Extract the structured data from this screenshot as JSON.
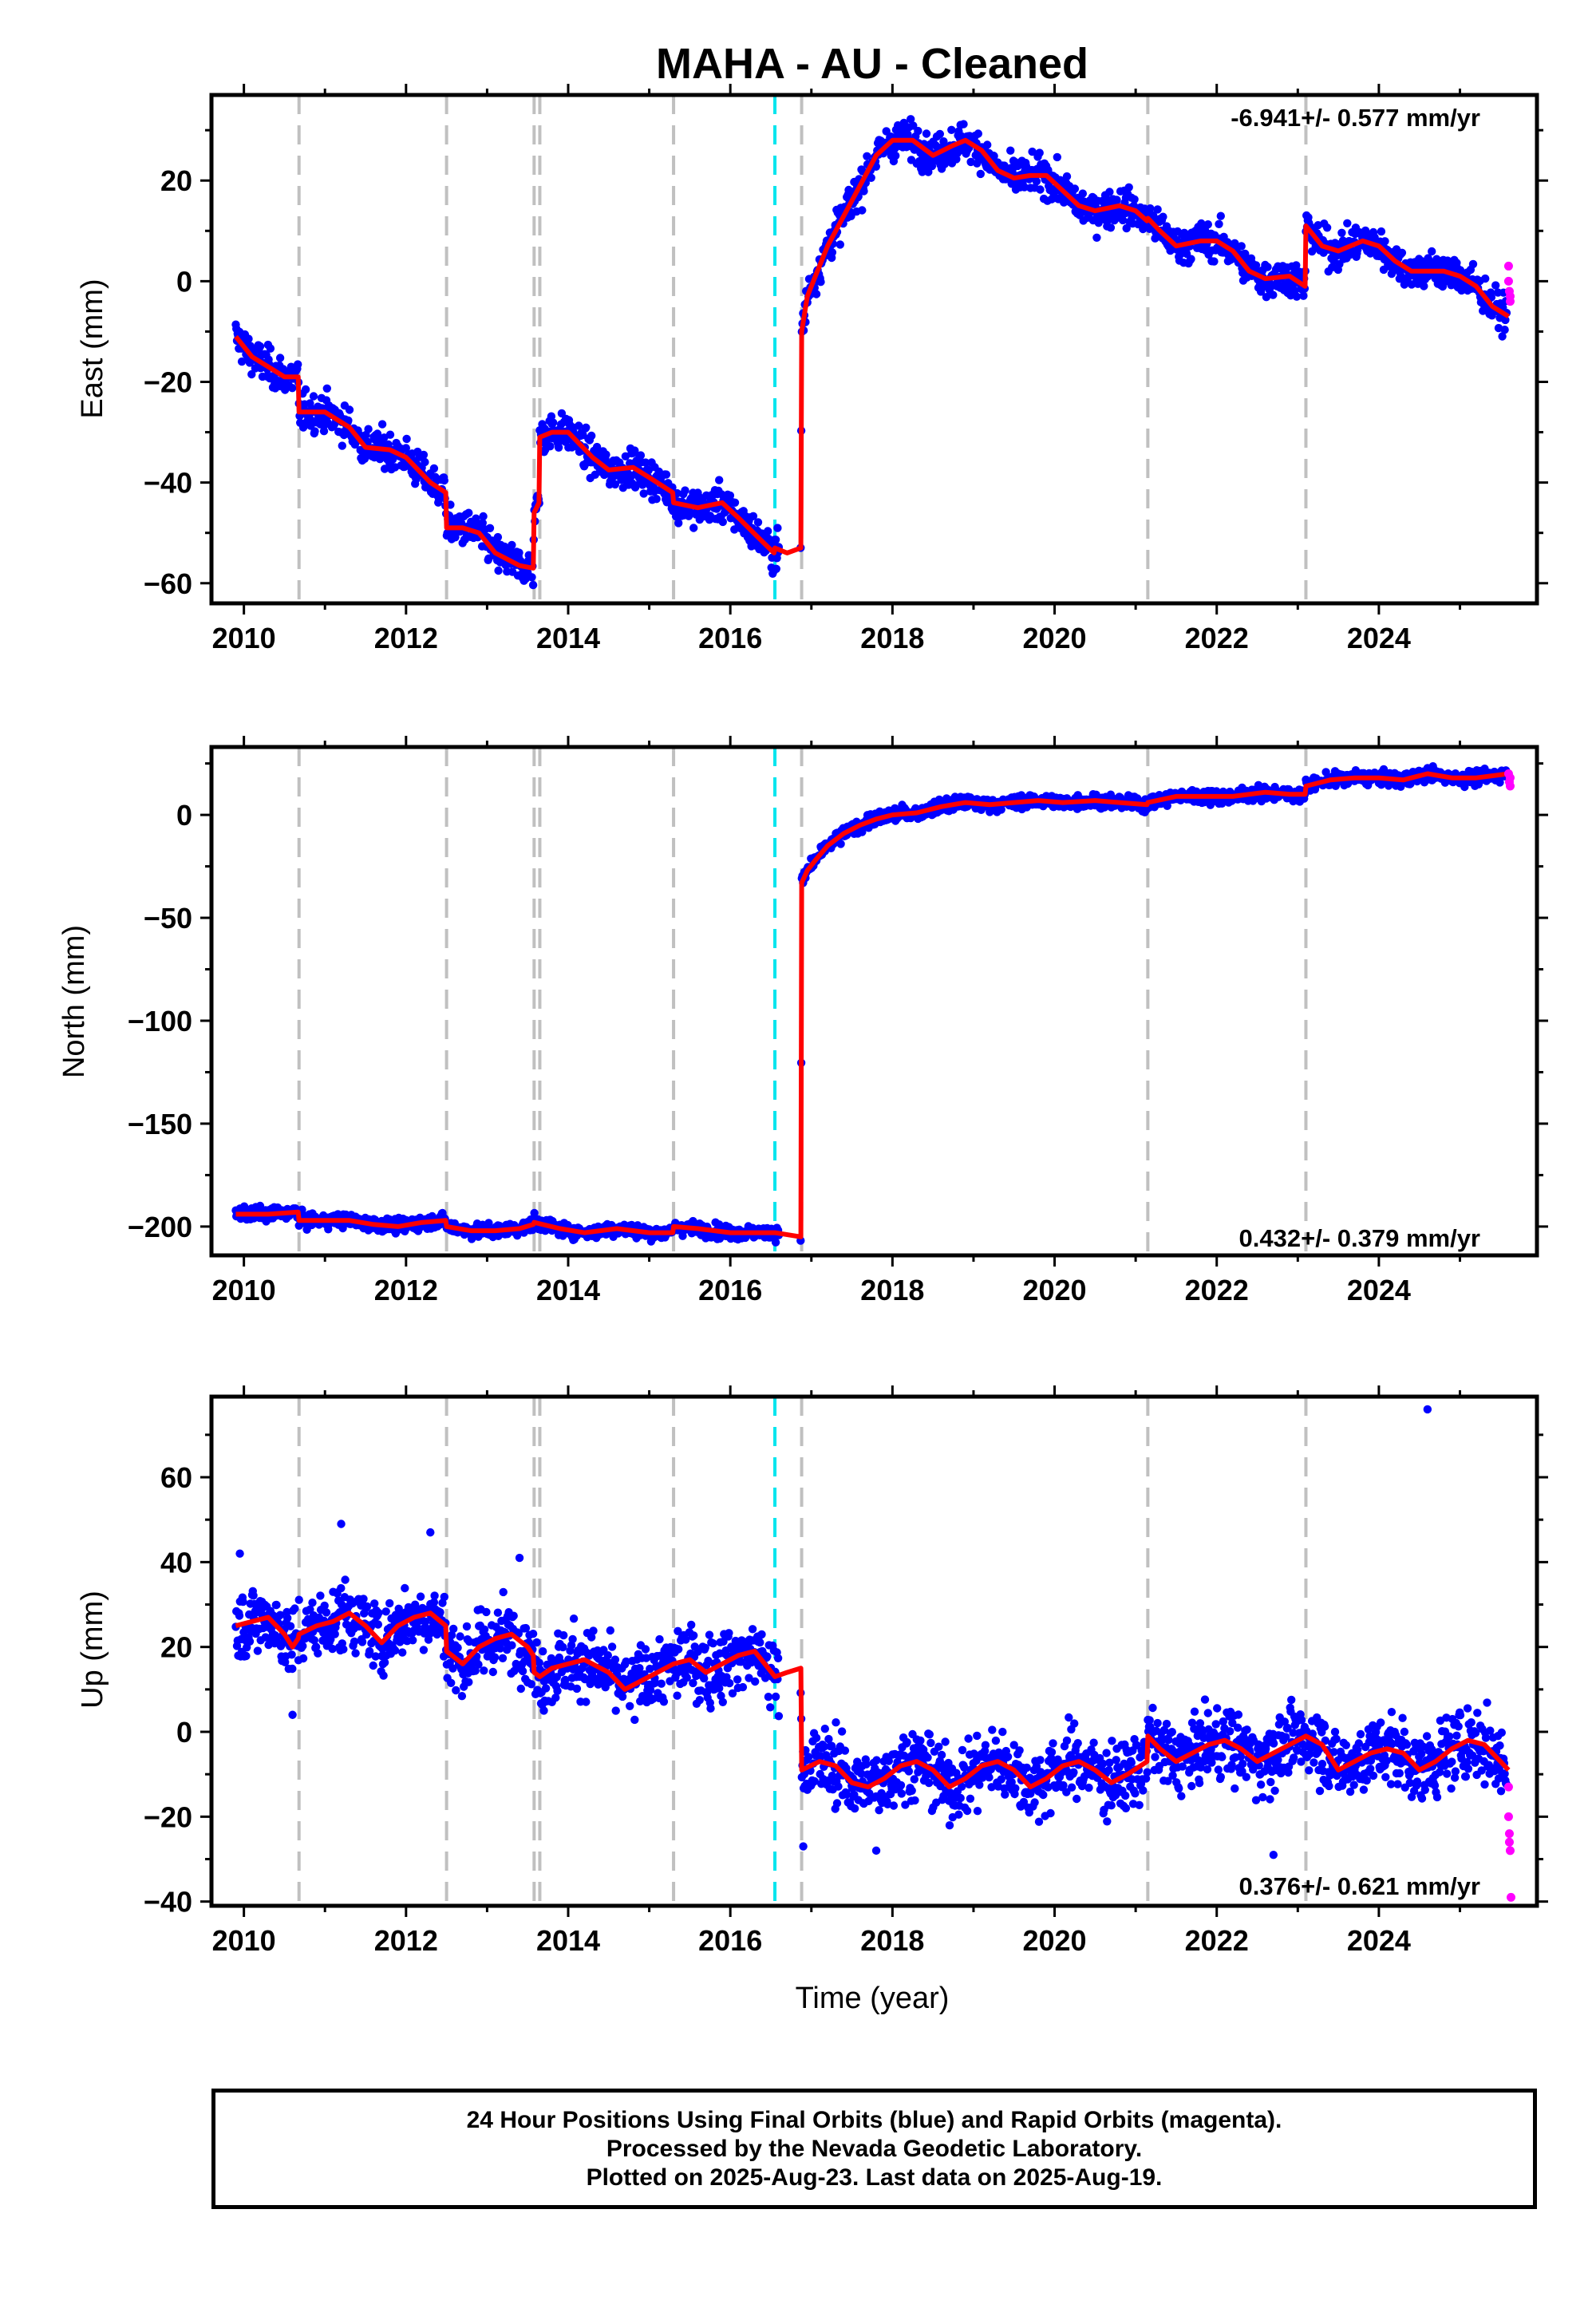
{
  "title": "MAHA  - AU - Cleaned",
  "xlabel": "Time (year)",
  "footer": {
    "line1": "24 Hour Positions Using Final Orbits (blue) and Rapid Orbits (magenta).",
    "line2": "Processed by the Nevada Geodetic Laboratory.",
    "line3": "Plotted on 2025-Aug-23. Last data on 2025-Aug-19."
  },
  "colors": {
    "final_orbits": "#0000ff",
    "rapid_orbits": "#ff00ff",
    "model": "#ff0000",
    "equipment_change": "#c0c0c0",
    "earthquake": "#00e5ee"
  },
  "chart_data": [
    {
      "type": "scatter",
      "component": "East",
      "ylabel": "East (mm)",
      "xlim": [
        2009.6,
        2025.95
      ],
      "ylim": [
        -64,
        37
      ],
      "yticks": [
        -60,
        -40,
        -20,
        0,
        20
      ],
      "xticks": [
        2010,
        2012,
        2014,
        2016,
        2018,
        2020,
        2022,
        2024
      ],
      "rate": "-6.941+/- 0.577 mm/yr",
      "rate_position": "top-right",
      "grid": false,
      "steps_gray": [
        2010.68,
        2012.5,
        2013.58,
        2013.65,
        2015.3,
        2016.88,
        2021.15,
        2023.1
      ],
      "steps_cyan": [
        2016.55
      ],
      "model": [
        [
          2009.9,
          -11
        ],
        [
          2010.1,
          -15
        ],
        [
          2010.3,
          -17
        ],
        [
          2010.5,
          -19
        ],
        [
          2010.67,
          -19
        ],
        [
          2010.68,
          -26
        ],
        [
          2011.0,
          -26
        ],
        [
          2011.3,
          -29
        ],
        [
          2011.5,
          -33
        ],
        [
          2011.8,
          -33.5
        ],
        [
          2012.0,
          -35
        ],
        [
          2012.3,
          -40
        ],
        [
          2012.49,
          -42
        ],
        [
          2012.5,
          -49
        ],
        [
          2012.7,
          -49
        ],
        [
          2012.9,
          -50
        ],
        [
          2013.1,
          -54
        ],
        [
          2013.4,
          -56.5
        ],
        [
          2013.57,
          -57
        ],
        [
          2013.58,
          -46
        ],
        [
          2013.64,
          -44
        ],
        [
          2013.65,
          -31
        ],
        [
          2013.8,
          -30
        ],
        [
          2014.0,
          -30
        ],
        [
          2014.3,
          -35
        ],
        [
          2014.5,
          -37.5
        ],
        [
          2014.8,
          -37
        ],
        [
          2015.0,
          -39
        ],
        [
          2015.29,
          -42
        ],
        [
          2015.3,
          -44
        ],
        [
          2015.6,
          -45
        ],
        [
          2015.9,
          -44
        ],
        [
          2016.1,
          -47
        ],
        [
          2016.35,
          -51
        ],
        [
          2016.54,
          -54
        ],
        [
          2016.55,
          -53
        ],
        [
          2016.7,
          -54
        ],
        [
          2016.87,
          -53
        ],
        [
          2016.88,
          -10
        ],
        [
          2016.95,
          -3
        ],
        [
          2017.05,
          1
        ],
        [
          2017.2,
          7
        ],
        [
          2017.4,
          13
        ],
        [
          2017.6,
          19
        ],
        [
          2017.8,
          25
        ],
        [
          2018.0,
          28
        ],
        [
          2018.25,
          28
        ],
        [
          2018.5,
          25
        ],
        [
          2018.75,
          27
        ],
        [
          2018.9,
          28
        ],
        [
          2019.1,
          26
        ],
        [
          2019.3,
          22
        ],
        [
          2019.5,
          20.5
        ],
        [
          2019.7,
          21
        ],
        [
          2019.9,
          21
        ],
        [
          2020.1,
          18
        ],
        [
          2020.3,
          15
        ],
        [
          2020.5,
          14
        ],
        [
          2020.8,
          15
        ],
        [
          2021.0,
          14
        ],
        [
          2021.14,
          12
        ],
        [
          2021.15,
          12.5
        ],
        [
          2021.3,
          10
        ],
        [
          2021.5,
          7
        ],
        [
          2021.8,
          8
        ],
        [
          2022.0,
          8
        ],
        [
          2022.2,
          6
        ],
        [
          2022.4,
          2
        ],
        [
          2022.6,
          0.5
        ],
        [
          2022.9,
          1
        ],
        [
          2023.09,
          -1
        ],
        [
          2023.1,
          11
        ],
        [
          2023.3,
          7
        ],
        [
          2023.5,
          6
        ],
        [
          2023.8,
          8
        ],
        [
          2024.0,
          7
        ],
        [
          2024.2,
          4
        ],
        [
          2024.4,
          2
        ],
        [
          2024.6,
          2
        ],
        [
          2024.8,
          2
        ],
        [
          2025.0,
          1
        ],
        [
          2025.2,
          -1
        ],
        [
          2025.4,
          -5
        ],
        [
          2025.6,
          -7
        ]
      ],
      "rapid_orbits": [
        [
          2025.6,
          3
        ],
        [
          2025.6,
          0
        ],
        [
          2025.61,
          -2
        ],
        [
          2025.62,
          -4
        ],
        [
          2025.62,
          -3
        ]
      ]
    },
    {
      "type": "scatter",
      "component": "North",
      "ylabel": "North (mm)",
      "xlim": [
        2009.6,
        2025.95
      ],
      "ylim": [
        -214,
        33
      ],
      "yticks": [
        -200,
        -150,
        -100,
        -50,
        0
      ],
      "xticks": [
        2010,
        2012,
        2014,
        2016,
        2018,
        2020,
        2022,
        2024
      ],
      "rate": "0.432+/- 0.379 mm/yr",
      "rate_position": "bottom-right",
      "grid": false,
      "steps_gray": [
        2010.68,
        2012.5,
        2013.58,
        2013.65,
        2015.3,
        2016.88,
        2021.15,
        2023.1
      ],
      "steps_cyan": [
        2016.55
      ],
      "model": [
        [
          2009.9,
          -194
        ],
        [
          2010.3,
          -194
        ],
        [
          2010.67,
          -193
        ],
        [
          2010.68,
          -197
        ],
        [
          2011.0,
          -197
        ],
        [
          2011.3,
          -197
        ],
        [
          2011.6,
          -199
        ],
        [
          2011.9,
          -200
        ],
        [
          2012.2,
          -198
        ],
        [
          2012.49,
          -197
        ],
        [
          2012.5,
          -200
        ],
        [
          2012.8,
          -202
        ],
        [
          2013.1,
          -202
        ],
        [
          2013.4,
          -201
        ],
        [
          2013.57,
          -199
        ],
        [
          2013.58,
          -198
        ],
        [
          2013.9,
          -201
        ],
        [
          2014.2,
          -203
        ],
        [
          2014.6,
          -201
        ],
        [
          2015.0,
          -203
        ],
        [
          2015.29,
          -203
        ],
        [
          2015.3,
          -200
        ],
        [
          2015.6,
          -201
        ],
        [
          2016.0,
          -203
        ],
        [
          2016.3,
          -203
        ],
        [
          2016.55,
          -203
        ],
        [
          2016.87,
          -205
        ],
        [
          2016.88,
          -33
        ],
        [
          2016.95,
          -27
        ],
        [
          2017.05,
          -22
        ],
        [
          2017.2,
          -15
        ],
        [
          2017.4,
          -9
        ],
        [
          2017.6,
          -5
        ],
        [
          2017.8,
          -2
        ],
        [
          2018.0,
          0
        ],
        [
          2018.3,
          1
        ],
        [
          2018.6,
          4
        ],
        [
          2018.9,
          6
        ],
        [
          2019.2,
          5
        ],
        [
          2019.5,
          6
        ],
        [
          2019.8,
          7
        ],
        [
          2020.1,
          6
        ],
        [
          2020.5,
          7
        ],
        [
          2020.8,
          6
        ],
        [
          2021.14,
          5
        ],
        [
          2021.15,
          6
        ],
        [
          2021.5,
          9
        ],
        [
          2021.8,
          9
        ],
        [
          2022.2,
          9
        ],
        [
          2022.6,
          11
        ],
        [
          2022.9,
          10
        ],
        [
          2023.09,
          10
        ],
        [
          2023.1,
          14
        ],
        [
          2023.4,
          17
        ],
        [
          2023.7,
          18
        ],
        [
          2024.0,
          18
        ],
        [
          2024.3,
          17
        ],
        [
          2024.6,
          20
        ],
        [
          2024.9,
          18
        ],
        [
          2025.2,
          18
        ],
        [
          2025.6,
          20
        ]
      ],
      "rapid_orbits": [
        [
          2025.6,
          20
        ],
        [
          2025.61,
          16
        ],
        [
          2025.62,
          14
        ],
        [
          2025.62,
          18
        ]
      ]
    },
    {
      "type": "scatter",
      "component": "Up",
      "ylabel": "Up (mm)",
      "xlim": [
        2009.6,
        2025.95
      ],
      "ylim": [
        -41,
        79
      ],
      "yticks": [
        -40,
        -20,
        0,
        20,
        40,
        60
      ],
      "xticks": [
        2010,
        2012,
        2014,
        2016,
        2018,
        2020,
        2022,
        2024
      ],
      "rate": "0.376+/- 0.621 mm/yr",
      "rate_position": "bottom-right",
      "grid": false,
      "steps_gray": [
        2010.68,
        2012.5,
        2013.58,
        2013.65,
        2015.3,
        2016.88,
        2021.15,
        2023.1
      ],
      "steps_cyan": [
        2016.55
      ],
      "model": [
        [
          2009.9,
          25
        ],
        [
          2010.1,
          26
        ],
        [
          2010.3,
          27
        ],
        [
          2010.5,
          23
        ],
        [
          2010.6,
          20
        ],
        [
          2010.67,
          22
        ],
        [
          2010.68,
          23
        ],
        [
          2010.9,
          25
        ],
        [
          2011.1,
          26
        ],
        [
          2011.3,
          28
        ],
        [
          2011.5,
          25
        ],
        [
          2011.7,
          21
        ],
        [
          2011.9,
          25
        ],
        [
          2012.1,
          27
        ],
        [
          2012.3,
          28
        ],
        [
          2012.49,
          25
        ],
        [
          2012.5,
          19
        ],
        [
          2012.7,
          16
        ],
        [
          2012.9,
          20
        ],
        [
          2013.1,
          22
        ],
        [
          2013.3,
          23
        ],
        [
          2013.5,
          20
        ],
        [
          2013.57,
          18
        ],
        [
          2013.58,
          14
        ],
        [
          2013.65,
          13
        ],
        [
          2013.8,
          15
        ],
        [
          2014.0,
          16
        ],
        [
          2014.2,
          17
        ],
        [
          2014.5,
          14
        ],
        [
          2014.7,
          10
        ],
        [
          2014.9,
          12
        ],
        [
          2015.1,
          14
        ],
        [
          2015.3,
          16
        ],
        [
          2015.5,
          17
        ],
        [
          2015.7,
          14
        ],
        [
          2015.9,
          16
        ],
        [
          2016.1,
          18
        ],
        [
          2016.3,
          19
        ],
        [
          2016.55,
          13
        ],
        [
          2016.7,
          14
        ],
        [
          2016.87,
          15
        ],
        [
          2016.88,
          -9
        ],
        [
          2017.1,
          -7
        ],
        [
          2017.3,
          -8
        ],
        [
          2017.5,
          -12
        ],
        [
          2017.7,
          -13
        ],
        [
          2017.9,
          -11
        ],
        [
          2018.1,
          -8
        ],
        [
          2018.3,
          -7
        ],
        [
          2018.5,
          -9
        ],
        [
          2018.7,
          -13
        ],
        [
          2018.9,
          -11
        ],
        [
          2019.1,
          -8
        ],
        [
          2019.3,
          -7
        ],
        [
          2019.5,
          -9
        ],
        [
          2019.7,
          -13
        ],
        [
          2019.9,
          -11
        ],
        [
          2020.1,
          -8
        ],
        [
          2020.3,
          -7
        ],
        [
          2020.5,
          -9
        ],
        [
          2020.7,
          -12
        ],
        [
          2020.9,
          -10
        ],
        [
          2021.14,
          -7
        ],
        [
          2021.15,
          -1
        ],
        [
          2021.3,
          -4
        ],
        [
          2021.5,
          -7
        ],
        [
          2021.7,
          -5
        ],
        [
          2021.9,
          -3
        ],
        [
          2022.1,
          -2
        ],
        [
          2022.3,
          -4
        ],
        [
          2022.5,
          -7
        ],
        [
          2022.7,
          -5
        ],
        [
          2022.9,
          -3
        ],
        [
          2023.1,
          -1
        ],
        [
          2023.3,
          -3
        ],
        [
          2023.5,
          -9
        ],
        [
          2023.7,
          -7
        ],
        [
          2023.9,
          -5
        ],
        [
          2024.1,
          -4
        ],
        [
          2024.3,
          -5
        ],
        [
          2024.5,
          -9
        ],
        [
          2024.7,
          -7
        ],
        [
          2024.9,
          -4
        ],
        [
          2025.1,
          -2
        ],
        [
          2025.3,
          -3
        ],
        [
          2025.5,
          -7
        ],
        [
          2025.6,
          -9
        ]
      ],
      "outliers": [
        [
          2024.6,
          76
        ],
        [
          2012.3,
          47
        ],
        [
          2011.2,
          49
        ],
        [
          2013.4,
          41
        ],
        [
          2009.95,
          42
        ],
        [
          2010.6,
          4
        ],
        [
          2013.7,
          5
        ],
        [
          2017.8,
          -28
        ],
        [
          2022.7,
          -29
        ],
        [
          2016.9,
          -27
        ]
      ],
      "rapid_orbits": [
        [
          2025.6,
          -13
        ],
        [
          2025.6,
          -20
        ],
        [
          2025.61,
          -24
        ],
        [
          2025.61,
          -26
        ],
        [
          2025.62,
          -28
        ],
        [
          2025.63,
          -39
        ]
      ]
    }
  ]
}
